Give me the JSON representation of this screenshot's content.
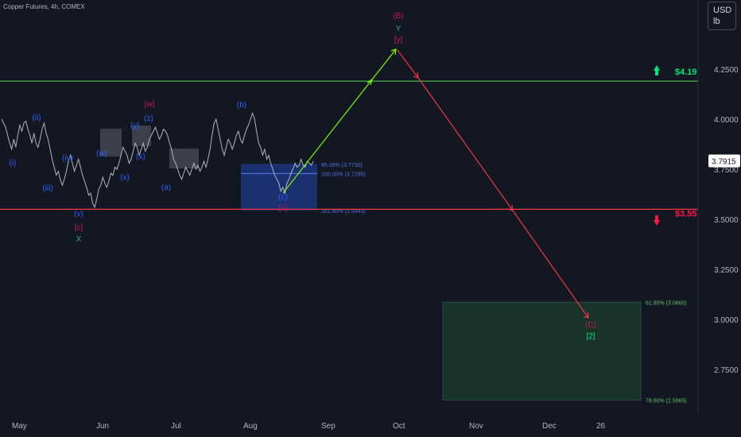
{
  "header": {
    "symbol": "Copper Futures, 4h, COMEX",
    "currency": "USD",
    "unit": "lb"
  },
  "colors": {
    "background": "#131722",
    "price": "#b2b5be",
    "wave_blue": "#2962ff",
    "wave_magenta": "#c2185b",
    "wave_teal": "#26a69a",
    "resistance": "#4caf50",
    "support": "#f23645",
    "up_arrow": "#00e676",
    "down_arrow": "#ff1744",
    "target_box": "#1b3a2c"
  },
  "chart_data": {
    "type": "line",
    "y_ticks": [
      "4.2500",
      "4.0000",
      "3.7500",
      "3.5000",
      "3.2500",
      "3.0000",
      "2.7500"
    ],
    "x_ticks": [
      "May",
      "Jun",
      "Jul",
      "Aug",
      "Sep",
      "Oct",
      "Nov",
      "Dec",
      "26"
    ],
    "ylim": [
      2.58,
      4.53
    ],
    "current_price": "3.7915",
    "levels": [
      {
        "name": "resistance",
        "value": 4.19,
        "label": "$4.19"
      },
      {
        "name": "support",
        "value": 3.55,
        "label": "$3.55"
      }
    ],
    "fib_zone_blue": [
      {
        "value": 3.773,
        "label": "85.00% (3.7730)"
      },
      {
        "value": 3.7285,
        "label": "100.00% (3.7285)"
      },
      {
        "value": 3.5443,
        "label": "161.80% (3.5443)"
      }
    ],
    "fib_zone_green": [
      {
        "value": 3.086,
        "label": "61.80% (3.0860)"
      },
      {
        "value": 2.5965,
        "label": "78.60% (2.5965)"
      }
    ],
    "price_series": [
      4.0,
      3.98,
      3.96,
      3.92,
      3.88,
      3.85,
      3.9,
      3.86,
      3.92,
      3.97,
      3.94,
      3.98,
      3.99,
      3.95,
      3.92,
      3.88,
      3.93,
      3.88,
      3.86,
      3.9,
      3.95,
      3.98,
      3.93,
      3.9,
      3.85,
      3.8,
      3.76,
      3.72,
      3.74,
      3.7,
      3.67,
      3.7,
      3.74,
      3.79,
      3.82,
      3.78,
      3.74,
      3.77,
      3.8,
      3.76,
      3.72,
      3.69,
      3.66,
      3.62,
      3.63,
      3.58,
      3.56,
      3.6,
      3.65,
      3.67,
      3.71,
      3.68,
      3.66,
      3.69,
      3.73,
      3.72,
      3.76,
      3.75,
      3.78,
      3.82,
      3.86,
      3.84,
      3.82,
      3.78,
      3.8,
      3.84,
      3.88,
      3.86,
      3.82,
      3.85,
      3.88,
      3.84,
      3.86,
      3.9,
      3.92,
      3.94,
      3.96,
      3.93,
      3.9,
      3.92,
      3.95,
      3.94,
      3.92,
      3.88,
      3.85,
      3.8,
      3.78,
      3.75,
      3.72,
      3.7,
      3.73,
      3.76,
      3.74,
      3.72,
      3.75,
      3.78,
      3.75,
      3.77,
      3.74,
      3.76,
      3.79,
      3.76,
      3.8,
      3.85,
      3.92,
      3.98,
      4.0,
      3.95,
      3.9,
      3.85,
      3.82,
      3.86,
      3.9,
      3.88,
      3.85,
      3.88,
      3.92,
      3.94,
      3.9,
      3.88,
      3.92,
      3.95,
      3.97,
      4.0,
      4.03,
      4.0,
      3.94,
      3.88,
      3.86,
      3.82,
      3.85,
      3.8,
      3.82,
      3.78,
      3.75,
      3.72,
      3.7,
      3.68,
      3.64,
      3.66,
      3.63,
      3.68,
      3.7,
      3.73,
      3.75,
      3.78,
      3.76,
      3.77,
      3.8,
      3.77,
      3.76,
      3.79,
      3.78,
      3.77,
      3.79
    ]
  },
  "annotations": {
    "labels": [
      {
        "text": "(i)",
        "color": "wave_blue"
      },
      {
        "text": "(ii)",
        "color": "wave_blue"
      },
      {
        "text": "(iii)",
        "color": "wave_blue"
      },
      {
        "text": "(iv)",
        "color": "wave_blue"
      },
      {
        "text": "(v)",
        "color": "wave_blue"
      },
      {
        "text": "[c]",
        "color": "wave_magenta"
      },
      {
        "text": "X",
        "color": "wave_teal"
      },
      {
        "text": "(w)",
        "color": "wave_blue"
      },
      {
        "text": "(x)",
        "color": "wave_blue"
      },
      {
        "text": "(y)",
        "color": "wave_blue"
      },
      {
        "text": "(z)",
        "color": "wave_blue"
      },
      {
        "text": "[w]",
        "color": "wave_magenta"
      },
      {
        "text": "(x)",
        "color": "wave_blue"
      },
      {
        "text": "(a)",
        "color": "wave_blue"
      },
      {
        "text": "(b)",
        "color": "wave_blue"
      },
      {
        "text": "(c)",
        "color": "wave_blue"
      },
      {
        "text": "[x]",
        "color": "wave_magenta"
      },
      {
        "text": "(B)",
        "color": "wave_magenta"
      },
      {
        "text": "Y",
        "color": "wave_teal"
      },
      {
        "text": "[y]",
        "color": "wave_magenta"
      },
      {
        "text": "(C)",
        "color": "wave_magenta"
      },
      {
        "text": "[2]",
        "color": "up_arrow"
      }
    ]
  }
}
